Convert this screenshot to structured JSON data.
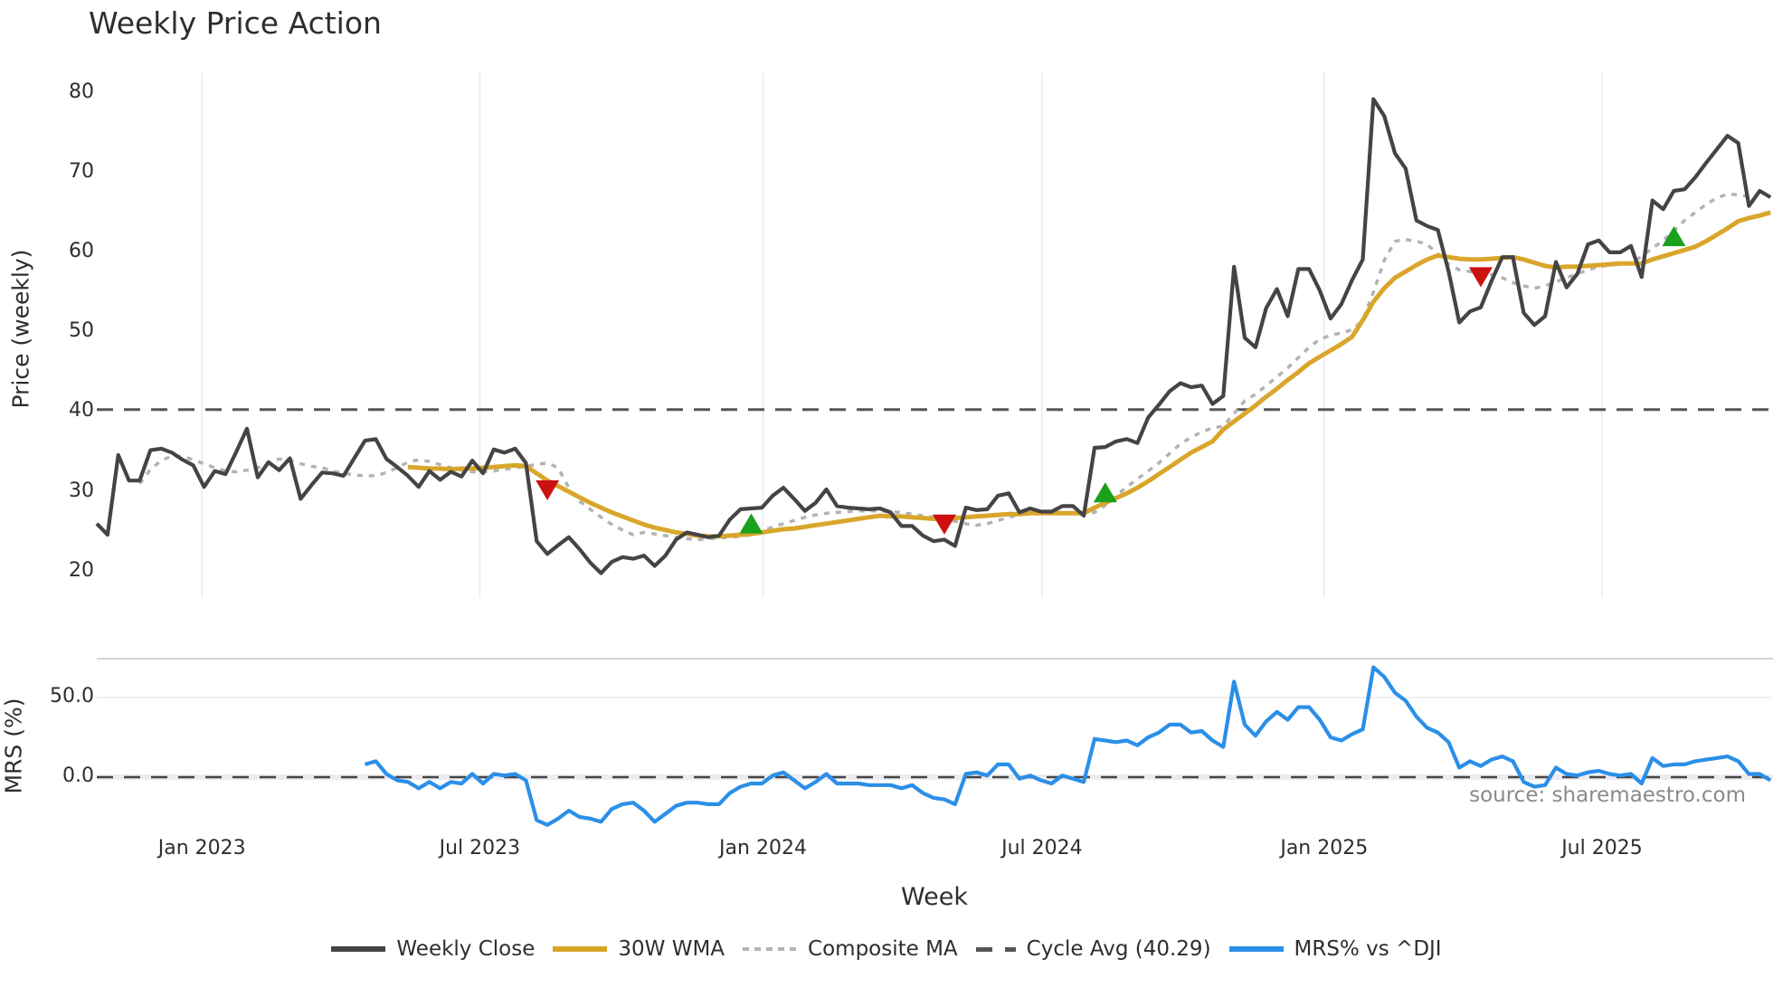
{
  "title": "Weekly Price Action",
  "source_text": "source: sharemaestro.com",
  "legend": [
    {
      "label": "Weekly Close",
      "color": "#444444",
      "style": "solid"
    },
    {
      "label": "30W WMA",
      "color": "#d9a62b",
      "style": "solid"
    },
    {
      "label": "Composite MA",
      "color": "#b3b3b3",
      "style": "dotted"
    },
    {
      "label": "Cycle Avg (40.29)",
      "color": "#555555",
      "style": "dashed"
    },
    {
      "label": "MRS% vs ^DJI",
      "color": "#2b8fe8",
      "style": "solid"
    }
  ],
  "colors": {
    "close": "#444444",
    "wma": "#d9a62b",
    "composite": "#b3b3b3",
    "cycle": "#555555",
    "mrs": "#2b8fe8",
    "buy_marker": "#1aa01a",
    "sell_marker": "#cc1111",
    "grid": "#ececec"
  },
  "chart_data": [
    {
      "type": "line",
      "title": "Weekly Price Action",
      "xlabel": "Week",
      "ylabel": "Price (weekly)",
      "ylim": [
        16.5,
        82
      ],
      "yticks": [
        20,
        30,
        40,
        50,
        60,
        70,
        80
      ],
      "xticks": [
        "Jan 2023",
        "Jul 2023",
        "Jan 2024",
        "Jul 2024",
        "Jan 2025",
        "Jul 2025"
      ],
      "xtick_index": [
        9.8,
        35.7,
        62.1,
        88.1,
        114.4,
        140.3
      ],
      "grid": true,
      "legend_position": "bottom",
      "series": [
        {
          "name": "Weekly Close",
          "start": 0,
          "values": [
            26.0,
            24.6,
            34.6,
            31.4,
            31.4,
            35.2,
            35.4,
            34.9,
            34.0,
            33.3,
            30.6,
            32.6,
            32.2,
            35.0,
            37.9,
            31.8,
            33.7,
            32.7,
            34.2,
            29.1,
            30.8,
            32.4,
            32.3,
            32.0,
            34.2,
            36.4,
            36.6,
            34.1,
            33.1,
            32.0,
            30.6,
            32.6,
            31.5,
            32.5,
            31.9,
            33.9,
            32.3,
            35.3,
            34.9,
            35.4,
            33.6,
            23.8,
            22.2,
            23.3,
            24.3,
            22.8,
            21.1,
            19.8,
            21.2,
            21.8,
            21.6,
            22.0,
            20.7,
            22.0,
            24.0,
            24.9,
            24.6,
            24.3,
            24.5,
            26.5,
            27.8,
            27.9,
            28.0,
            29.5,
            30.5,
            29.1,
            27.6,
            28.6,
            30.3,
            28.2,
            28.0,
            27.9,
            27.8,
            27.9,
            27.4,
            25.7,
            25.7,
            24.5,
            23.8,
            24.0,
            23.2,
            28.0,
            27.7,
            27.8,
            29.5,
            29.8,
            27.4,
            27.9,
            27.5,
            27.5,
            28.2,
            28.2,
            27.0,
            35.5,
            35.6,
            36.3,
            36.6,
            36.1,
            39.3,
            40.9,
            42.6,
            43.6,
            43.1,
            43.3,
            41.0,
            42.0,
            58.2,
            49.3,
            48.1,
            53.0,
            55.4,
            52.0,
            57.9,
            57.9,
            55.2,
            51.7,
            53.5,
            56.5,
            59.1,
            79.2,
            77.1,
            72.4,
            70.5,
            64.0,
            63.3,
            62.8,
            57.6,
            51.2,
            52.6,
            53.1,
            56.4,
            59.4,
            59.4,
            52.4,
            50.9,
            52.0,
            58.8,
            55.6,
            57.3,
            61.0,
            61.5,
            60.0,
            60.0,
            60.8,
            56.9,
            66.5,
            65.4,
            67.7,
            67.9,
            69.4,
            71.2,
            72.9,
            74.6,
            73.7,
            65.8,
            67.7,
            66.9
          ]
        },
        {
          "name": "30W WMA",
          "start": 29,
          "values": [
            33.1,
            33.0,
            32.9,
            32.9,
            32.8,
            32.9,
            32.9,
            33.0,
            33.1,
            33.2,
            33.3,
            33.2,
            32.3,
            31.4,
            30.7,
            30.0,
            29.3,
            28.6,
            28.0,
            27.4,
            26.9,
            26.4,
            25.9,
            25.5,
            25.2,
            24.9,
            24.7,
            24.5,
            24.4,
            24.4,
            24.5,
            24.6,
            24.7,
            24.9,
            25.1,
            25.3,
            25.4,
            25.6,
            25.8,
            26.0,
            26.2,
            26.4,
            26.6,
            26.8,
            27.0,
            26.9,
            26.9,
            26.8,
            26.7,
            26.6,
            26.6,
            26.7,
            26.8,
            26.9,
            27.0,
            27.1,
            27.2,
            27.2,
            27.3,
            27.3,
            27.3,
            27.3,
            27.3,
            27.3,
            28.0,
            28.6,
            29.2,
            29.8,
            30.5,
            31.3,
            32.2,
            33.1,
            34.0,
            34.9,
            35.6,
            36.3,
            37.8,
            38.8,
            39.8,
            40.8,
            41.9,
            42.9,
            44.0,
            45.0,
            46.1,
            46.9,
            47.7,
            48.5,
            49.4,
            51.5,
            53.8,
            55.5,
            56.8,
            57.6,
            58.4,
            59.1,
            59.6,
            59.4,
            59.2,
            59.1,
            59.1,
            59.2,
            59.3,
            59.4,
            59.1,
            58.7,
            58.3,
            58.1,
            58.2,
            58.2,
            58.3,
            58.4,
            58.5,
            58.6,
            58.6,
            58.6,
            59.1,
            59.5,
            59.9,
            60.3,
            60.7,
            61.4,
            62.2,
            63.0,
            63.9,
            64.3,
            64.6,
            65.0
          ]
        },
        {
          "name": "Composite MA",
          "start": 4,
          "values": [
            31.0,
            32.8,
            33.9,
            34.5,
            34.4,
            34.0,
            33.5,
            33.0,
            32.6,
            32.5,
            32.7,
            33.0,
            33.6,
            34.1,
            33.9,
            33.5,
            33.2,
            33.0,
            32.6,
            32.3,
            32.1,
            32.0,
            32.0,
            32.4,
            33.0,
            33.7,
            34.0,
            33.8,
            33.4,
            33.0,
            32.7,
            32.5,
            32.5,
            32.6,
            32.8,
            33.0,
            33.2,
            33.4,
            33.6,
            33.0,
            30.5,
            28.8,
            27.8,
            26.8,
            25.9,
            25.2,
            24.6,
            24.9,
            24.7,
            24.5,
            24.3,
            24.1,
            24.0,
            24.1,
            24.2,
            24.3,
            24.4,
            24.6,
            25.0,
            25.6,
            26.0,
            26.4,
            26.8,
            27.1,
            27.3,
            27.4,
            27.5,
            27.6,
            27.6,
            27.6,
            27.5,
            27.4,
            27.2,
            27.0,
            26.8,
            26.5,
            26.3,
            26.0,
            25.8,
            26.0,
            26.4,
            26.8,
            27.1,
            27.3,
            27.4,
            27.4,
            27.4,
            27.4,
            27.4,
            27.4,
            28.3,
            29.5,
            30.6,
            31.6,
            32.6,
            33.6,
            34.8,
            36.0,
            36.8,
            37.5,
            38.0,
            38.2,
            39.8,
            41.4,
            42.2,
            43.3,
            44.4,
            45.5,
            46.8,
            48.1,
            49.1,
            49.6,
            49.9,
            50.3,
            51.5,
            55.0,
            59.0,
            61.4,
            61.6,
            61.4,
            61.0,
            59.8,
            58.5,
            57.8,
            57.6,
            57.4,
            57.2,
            56.8,
            56.2,
            55.8,
            55.5,
            55.8,
            56.3,
            56.8,
            57.3,
            57.8,
            58.2,
            58.4,
            58.5,
            58.6,
            59.5,
            60.5,
            61.5,
            62.7,
            64.0,
            65.0,
            66.0,
            66.8,
            67.3,
            67.2,
            67.0
          ]
        },
        {
          "name": "Cycle Avg (40.29)",
          "type": "hline",
          "value": 40.29
        }
      ],
      "markers": [
        {
          "type": "sell",
          "shape": "triangle-down",
          "index": 42,
          "value": 30.4
        },
        {
          "type": "buy",
          "shape": "triangle-up",
          "index": 61,
          "value": 25.8
        },
        {
          "type": "sell",
          "shape": "triangle-down",
          "index": 79,
          "value": 26.1
        },
        {
          "type": "buy",
          "shape": "triangle-up",
          "index": 94,
          "value": 29.7
        },
        {
          "type": "sell",
          "shape": "triangle-down",
          "index": 129,
          "value": 57.1
        },
        {
          "type": "buy",
          "shape": "triangle-up",
          "index": 147,
          "value": 61.8
        }
      ]
    },
    {
      "type": "line",
      "title": "",
      "xlabel": "Week",
      "ylabel": "MRS (%)",
      "ylim": [
        -43,
        74
      ],
      "yticks": [
        0.0,
        50.0
      ],
      "ytick_labels": [
        "0.0",
        "50.0"
      ],
      "zero_line": "dashed",
      "series": [
        {
          "name": "MRS% vs ^DJI",
          "start": 25,
          "values": [
            8,
            10,
            2,
            -2,
            -3,
            -7,
            -3,
            -7,
            -3,
            -4,
            2,
            -4,
            2,
            1,
            2,
            -2,
            -27,
            -30,
            -26,
            -21,
            -25,
            -26,
            -28,
            -20,
            -17,
            -16,
            -21,
            -28,
            -23,
            -18,
            -16,
            -16,
            -17,
            -17,
            -10,
            -6,
            -4,
            -4,
            1,
            3,
            -2,
            -7,
            -3,
            2,
            -4,
            -4,
            -4,
            -5,
            -5,
            -5,
            -7,
            -5,
            -10,
            -13,
            -14,
            -17,
            2,
            3,
            1,
            8,
            8,
            -1,
            1,
            -2,
            -4,
            1,
            -1,
            -3,
            24,
            23,
            22,
            23,
            20,
            25,
            28,
            33,
            33,
            28,
            29,
            23,
            19,
            60,
            33,
            26,
            35,
            41,
            36,
            44,
            44,
            36,
            25,
            23,
            27,
            30,
            69,
            63,
            53,
            48,
            38,
            31,
            28,
            22,
            6,
            10,
            7,
            11,
            13,
            10,
            -3,
            -6,
            -5,
            6,
            2,
            1,
            3,
            4,
            2,
            1,
            2,
            -4,
            12,
            7,
            8,
            8,
            10,
            11,
            12,
            13,
            10,
            2,
            2,
            -2
          ]
        }
      ]
    }
  ]
}
